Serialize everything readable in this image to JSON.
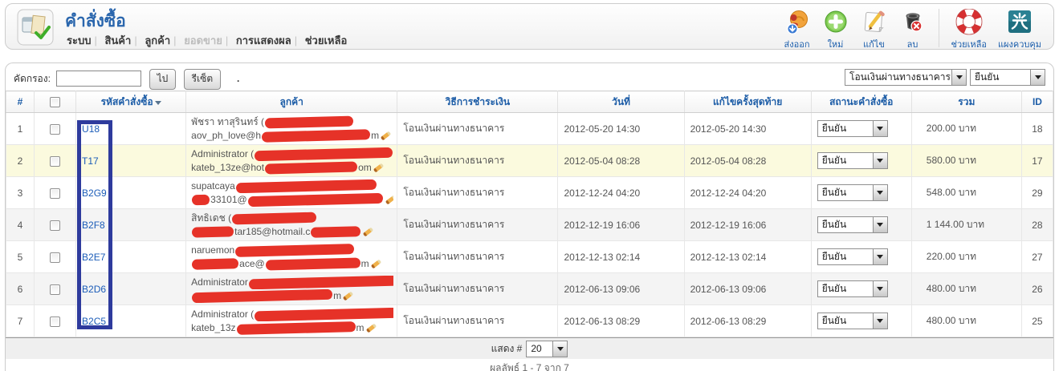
{
  "header": {
    "title": "คำสั่งซื้อ",
    "menu": [
      {
        "label": "ระบบ"
      },
      {
        "label": "สินค้า"
      },
      {
        "label": "ลูกค้า"
      },
      {
        "label": "ยอดขาย",
        "disabled": true
      },
      {
        "label": "การแสดงผล"
      },
      {
        "label": "ช่วยเหลือ"
      }
    ],
    "toolbar": [
      {
        "icon": "export-icon",
        "label": "ส่งออก"
      },
      {
        "icon": "new-icon",
        "label": "ใหม่"
      },
      {
        "icon": "edit-icon",
        "label": "แก้ไข"
      },
      {
        "icon": "delete-icon",
        "label": "ลบ"
      },
      {
        "icon": "help-icon",
        "label": "ช่วยเหลือ"
      },
      {
        "icon": "control-panel-icon",
        "label": "แผงควบคุม"
      }
    ]
  },
  "filter": {
    "label": "คัดกรอง:",
    "input_value": "",
    "go_button": "ไป",
    "reset_button": "รีเซ็ต",
    "stray_dot": ".",
    "payment_select_value": "โอนเงินผ่านทางธนาคาร",
    "status_select_value": "ยืนยัน"
  },
  "table": {
    "columns": [
      "#",
      "",
      "รหัสคำสั่งซื้อ",
      "ลูกค้า",
      "วิธีการชำระเงิน",
      "วันที่",
      "แก้ไขครั้งสุดท้าย",
      "สถานะคำสั่งซื้อ",
      "รวม",
      "ID"
    ],
    "sorted_column": "รหัสคำสั่งซื้อ",
    "rows": [
      {
        "num": "1",
        "code": "U18",
        "customer_name": "พัชรา ทาสุรินทร์ (",
        "email_start": "aov_ph_love@h",
        "email_end": "m",
        "payment": "โอนเงินผ่านทางธนาคาร",
        "date": "2012-05-20 14:30",
        "modified": "2012-05-20 14:30",
        "status": "ยืนยัน",
        "total": "200.00 บาท",
        "id": "18",
        "highlight": false
      },
      {
        "num": "2",
        "code": "T17",
        "customer_name": "Administrator (",
        "email_start": "kateb_13ze@hot",
        "email_end": "om",
        "payment": "โอนเงินผ่านทางธนาคาร",
        "date": "2012-05-04 08:28",
        "modified": "2012-05-04 08:28",
        "status": "ยืนยัน",
        "total": "580.00 บาท",
        "id": "17",
        "highlight": true
      },
      {
        "num": "3",
        "code": "B2G9",
        "customer_name": "supatcaya",
        "email_start": "33101@",
        "email_end": "",
        "payment": "โอนเงินผ่านทางธนาคาร",
        "date": "2012-12-24 04:20",
        "modified": "2012-12-24 04:20",
        "status": "ยืนยัน",
        "total": "548.00 บาท",
        "id": "29",
        "highlight": false
      },
      {
        "num": "4",
        "code": "B2F8",
        "customer_name": "สิทธิเดช (",
        "email_start": "tar185@hotmail.c",
        "email_end": "",
        "payment": "โอนเงินผ่านทางธนาคาร",
        "date": "2012-12-19 16:06",
        "modified": "2012-12-19 16:06",
        "status": "ยืนยัน",
        "total": "1 144.00 บาท",
        "id": "28",
        "highlight": false
      },
      {
        "num": "5",
        "code": "B2E7",
        "customer_name": "naruemon",
        "email_start": "ace@",
        "email_end": "m",
        "payment": "โอนเงินผ่านทางธนาคาร",
        "date": "2012-12-13 02:14",
        "modified": "2012-12-13 02:14",
        "status": "ยืนยัน",
        "total": "220.00 บาท",
        "id": "27",
        "highlight": false
      },
      {
        "num": "6",
        "code": "B2D6",
        "customer_name": "Administrator",
        "email_start": "",
        "email_end": "m",
        "payment": "โอนเงินผ่านทางธนาคาร",
        "date": "2012-06-13 09:06",
        "modified": "2012-06-13 09:06",
        "status": "ยืนยัน",
        "total": "480.00 บาท",
        "id": "26",
        "highlight": false
      },
      {
        "num": "7",
        "code": "B2C5",
        "customer_name": "Administrator (",
        "email_start": "kateb_13z",
        "email_end": "m",
        "payment": "โอนเงินผ่านทางธนาคาร",
        "date": "2012-06-13 08:29",
        "modified": "2012-06-13 08:29",
        "status": "ยืนยัน",
        "total": "480.00 บาท",
        "id": "25",
        "highlight": false
      }
    ]
  },
  "footer": {
    "display_label": "แสดง #",
    "page_size": "20",
    "results": "ผลลัพธ์ 1 - 7 จาก 7"
  },
  "annotations": {
    "highlight_box": {
      "color": "#2e3b9d",
      "target": "order-code-column"
    },
    "redaction_color": "#e63228",
    "redactions": [
      {
        "l1": 110,
        "l2pre": 0,
        "l2": 135
      },
      {
        "l1": 172,
        "l2pre": 0,
        "l2": 115
      },
      {
        "l1": 175,
        "l2pre": 22,
        "l2": 168
      },
      {
        "l1": 105,
        "l2pre": 52,
        "l2": 62
      },
      {
        "l1": 148,
        "l2pre": 58,
        "l2": 118
      },
      {
        "l1": 185,
        "l2pre": 0,
        "l2": 175
      },
      {
        "l1": 185,
        "l2pre": 0,
        "l2": 148
      }
    ]
  }
}
